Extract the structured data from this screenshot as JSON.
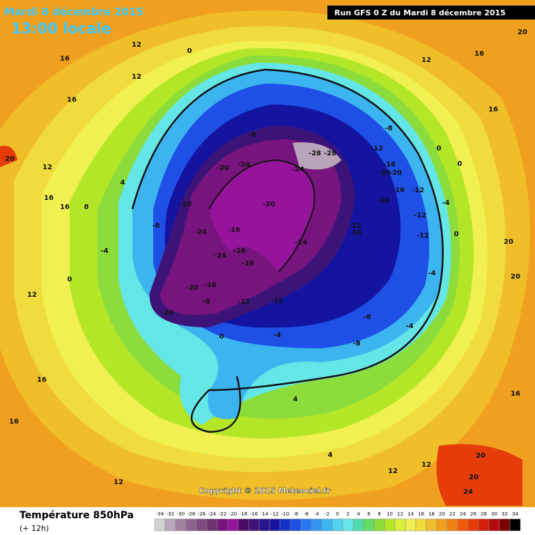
{
  "header": {
    "date": "Mardi 8 décembre 2015",
    "time": "13:00 locale",
    "run": "Run GFS 0 Z du Mardi 8 décembre 2015"
  },
  "copyright": "Copyright © 2015 Meteociel.fr",
  "legend": {
    "title": "Température 850hPa",
    "subtitle": "(+ 12h)",
    "ticks": [
      -34,
      -32,
      -30,
      -28,
      -26,
      -24,
      -22,
      -20,
      -18,
      -16,
      -14,
      -12,
      -10,
      -8,
      -6,
      -4,
      -2,
      0,
      2,
      4,
      6,
      8,
      10,
      12,
      14,
      16,
      18,
      20,
      22,
      24,
      26,
      28,
      30,
      32,
      34
    ],
    "colors": [
      "#d2d2d2",
      "#b9a5b9",
      "#a082a0",
      "#8c648c",
      "#7d4b7d",
      "#6e326e",
      "#78147d",
      "#96149b",
      "#4b0a64",
      "#3c1478",
      "#28148c",
      "#1414a0",
      "#1432c8",
      "#1e50e6",
      "#2878f0",
      "#3296f0",
      "#3cb4f0",
      "#50d2f0",
      "#64e6e6",
      "#50dcaa",
      "#64dc64",
      "#8cdc3c",
      "#b4e628",
      "#dcf03c",
      "#f0f050",
      "#f0dc3c",
      "#f0be28",
      "#f0a01e",
      "#f08214",
      "#f05a0a",
      "#e63c0a",
      "#d21e0a",
      "#b40a0a",
      "#780000",
      "#000000"
    ]
  },
  "contour_labels": [
    "12",
    "0",
    "16",
    "16",
    "12",
    "20",
    "12",
    "16",
    "16",
    "8",
    "4",
    "-8",
    "-20",
    "-24",
    "-20",
    "-24",
    "-8",
    "-24",
    "-28",
    "-28",
    "-20",
    "-16",
    "-16",
    "-24",
    "-16",
    "-20",
    "-16",
    "-20",
    "-8",
    "-12",
    "-12",
    "-24",
    "-12",
    "16",
    "-12",
    "-8",
    "-20",
    "-20",
    "-16",
    "-16",
    "-12",
    "-16",
    "-12",
    "-12",
    "0",
    "0",
    "-4",
    "0",
    "-8",
    "-8",
    "-4",
    "-4",
    "-4",
    "0",
    "4",
    "4",
    "12",
    "12",
    "16",
    "16",
    "16",
    "20",
    "12",
    "16",
    "20",
    "20",
    "20",
    "24",
    "20",
    "-4",
    "0",
    "12",
    "16",
    "12"
  ]
}
